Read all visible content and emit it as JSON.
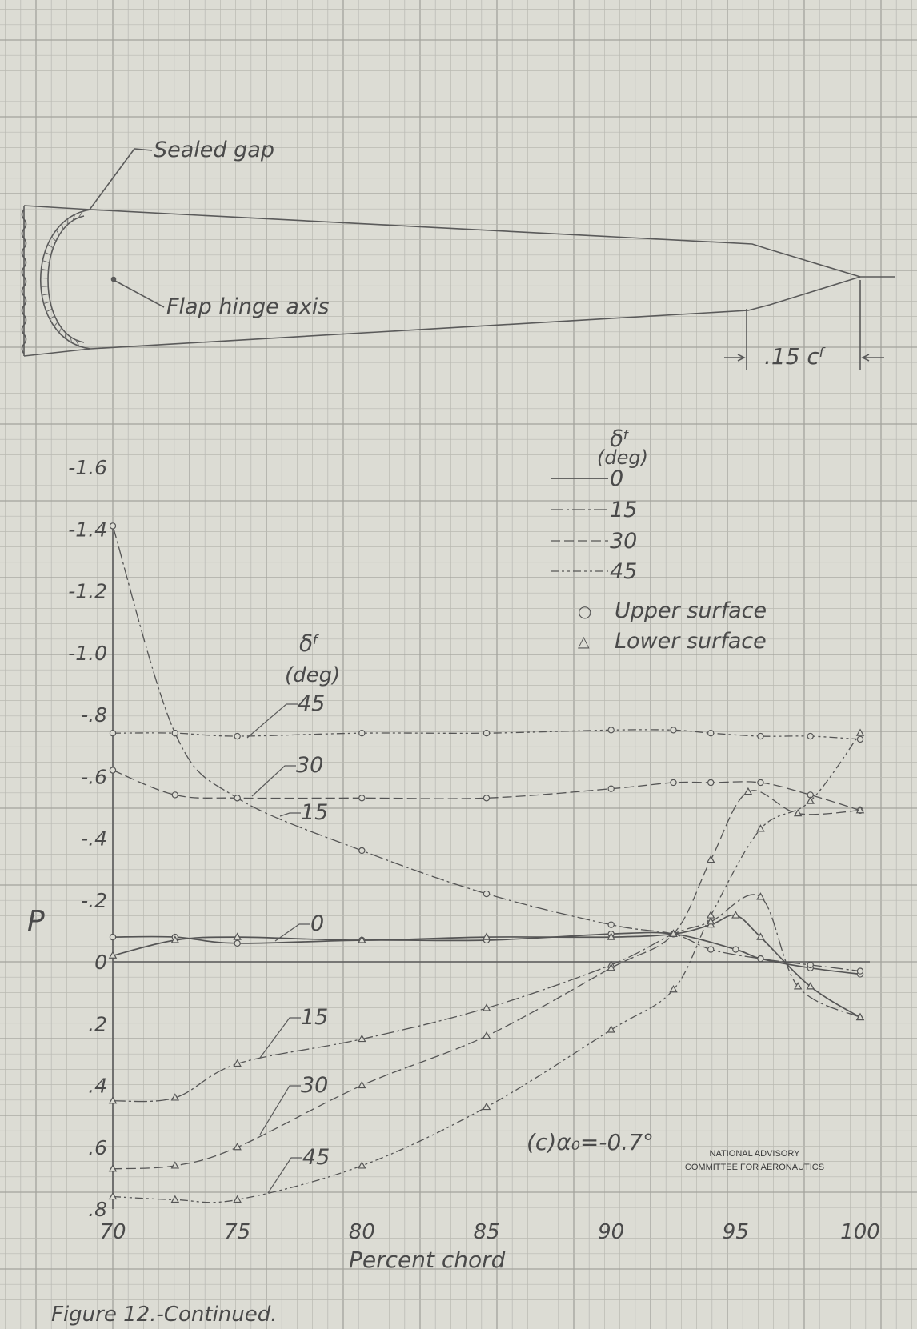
{
  "figure": {
    "caption": "Figure 12.-Continued.",
    "credit_line1": "NATIONAL ADVISORY",
    "credit_line2": "COMMITTEE FOR AERONAUTICS",
    "condition_label": "(c)α₀=-0.7°",
    "colors": {
      "paper": "#dcdcd4",
      "grid_minor": "#b9b9b2",
      "grid_major": "#a3a39c",
      "ink": "#555555"
    }
  },
  "section": {
    "sealed_gap_label": "Sealed gap",
    "hinge_label": "Flap hinge axis",
    "dimension_label": ".15 cᶠ"
  },
  "legend": {
    "symbol": "δᶠ",
    "unit": "(deg)",
    "entries": [
      "0",
      "15",
      "30",
      "45"
    ],
    "upper_marker": "○",
    "upper_label": "Upper surface",
    "lower_marker": "△",
    "lower_label": "Lower surface"
  },
  "chart_data": {
    "type": "line",
    "title": "",
    "xlabel": "Percent chord",
    "ylabel": "P",
    "xlim": [
      70,
      100
    ],
    "ylim": [
      0.8,
      -1.6
    ],
    "y_inverted": true,
    "x_ticks": [
      "70",
      "75",
      "80",
      "85",
      "90",
      "95",
      "100"
    ],
    "y_ticks": [
      "-1.6",
      "-1.4",
      "-1.2",
      "-1.0",
      "-.8",
      "-.6",
      "-.4",
      "-.2",
      "0",
      ".2",
      ".4",
      ".6",
      ".8"
    ],
    "grid": true,
    "legend_position": "top-right",
    "curve_annotation_title": "δᶠ",
    "curve_annotation_unit": "(deg)",
    "series": [
      {
        "name": "0",
        "surface": "upper",
        "marker": "circle",
        "x": [
          70,
          72.5,
          75,
          80,
          85,
          90,
          92.5,
          95,
          96,
          98,
          100
        ],
        "y": [
          -0.08,
          -0.08,
          -0.06,
          -0.07,
          -0.07,
          -0.09,
          -0.09,
          -0.04,
          -0.01,
          0.02,
          0.04
        ]
      },
      {
        "name": "0",
        "surface": "lower",
        "marker": "triangle",
        "x": [
          70,
          72.5,
          75,
          80,
          85,
          90,
          92.5,
          94,
          95,
          96,
          98,
          100
        ],
        "y": [
          -0.02,
          -0.07,
          -0.08,
          -0.07,
          -0.08,
          -0.08,
          -0.09,
          -0.12,
          -0.15,
          -0.08,
          0.08,
          0.18
        ]
      },
      {
        "name": "15",
        "surface": "upper",
        "marker": "circle",
        "x": [
          70,
          72.5,
          75,
          80,
          85,
          90,
          92.5,
          94,
          96,
          98,
          100
        ],
        "y": [
          -1.41,
          -0.74,
          -0.53,
          -0.36,
          -0.22,
          -0.12,
          -0.09,
          -0.04,
          -0.01,
          0.01,
          0.03
        ]
      },
      {
        "name": "15",
        "surface": "lower",
        "marker": "triangle",
        "x": [
          70,
          72.5,
          75,
          80,
          85,
          90,
          92.5,
          94,
          96,
          97.5,
          100
        ],
        "y": [
          0.45,
          0.44,
          0.33,
          0.25,
          0.15,
          0.01,
          -0.09,
          -0.13,
          -0.21,
          0.08,
          0.18
        ]
      },
      {
        "name": "30",
        "surface": "upper",
        "marker": "circle",
        "x": [
          70,
          72.5,
          75,
          80,
          85,
          90,
          92.5,
          94,
          96,
          98,
          100
        ],
        "y": [
          -0.62,
          -0.54,
          -0.53,
          -0.53,
          -0.53,
          -0.56,
          -0.58,
          -0.58,
          -0.58,
          -0.54,
          -0.49
        ]
      },
      {
        "name": "30",
        "surface": "lower",
        "marker": "triangle",
        "x": [
          70,
          72.5,
          75,
          80,
          85,
          90,
          92.5,
          94,
          95.5,
          97.5,
          100
        ],
        "y": [
          0.67,
          0.66,
          0.6,
          0.4,
          0.24,
          0.02,
          -0.09,
          -0.33,
          -0.55,
          -0.48,
          -0.49
        ]
      },
      {
        "name": "45",
        "surface": "upper",
        "marker": "circle",
        "x": [
          70,
          72.5,
          75,
          80,
          85,
          90,
          92.5,
          94,
          96,
          98,
          100
        ],
        "y": [
          -0.74,
          -0.74,
          -0.73,
          -0.74,
          -0.74,
          -0.75,
          -0.75,
          -0.74,
          -0.73,
          -0.73,
          -0.72
        ]
      },
      {
        "name": "45",
        "surface": "lower",
        "marker": "triangle",
        "x": [
          70,
          72.5,
          75,
          80,
          85,
          90,
          92.5,
          94,
          96,
          98,
          100
        ],
        "y": [
          0.76,
          0.77,
          0.77,
          0.66,
          0.47,
          0.22,
          0.09,
          -0.15,
          -0.43,
          -0.52,
          -0.74
        ]
      }
    ]
  }
}
